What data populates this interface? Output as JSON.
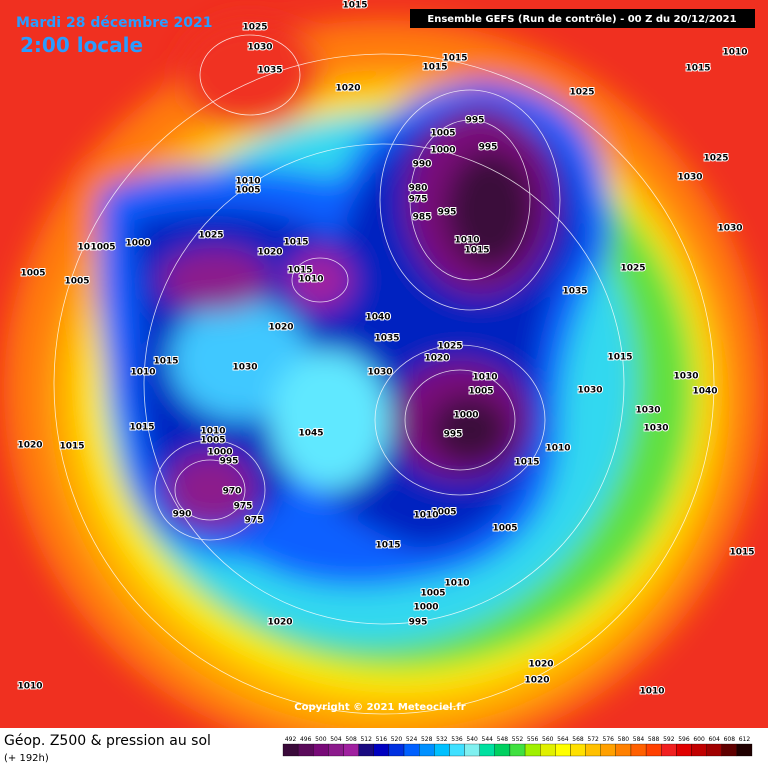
{
  "header": {
    "date": "Mardi 28 décembre 2021",
    "time": "2:00 locale",
    "model": "Ensemble GEFS  (Run de contrôle)  -  00 Z du 20/12/2021"
  },
  "copyright": "Copyright © 2021 Meteociel.fr",
  "footer": {
    "title": "Géop. Z500 & pression au sol",
    "subtitle": "(+ 192h)"
  },
  "legend": {
    "values": [
      492,
      496,
      500,
      504,
      508,
      512,
      516,
      520,
      524,
      528,
      532,
      536,
      540,
      544,
      548,
      552,
      556,
      560,
      564,
      568,
      572,
      576,
      580,
      584,
      588,
      592,
      596,
      600,
      604,
      608,
      612
    ],
    "colors": [
      "#3a0a3a",
      "#5a0a5a",
      "#780a78",
      "#8c1a8c",
      "#a020a0",
      "#1a0a80",
      "#0000c0",
      "#0030e0",
      "#0060ff",
      "#0090ff",
      "#00c0ff",
      "#40e0ff",
      "#80f0f0",
      "#00e0a0",
      "#00d060",
      "#40e040",
      "#a0f000",
      "#e0f000",
      "#ffff00",
      "#ffe000",
      "#ffc000",
      "#ffa000",
      "#ff8000",
      "#ff6000",
      "#ff4000",
      "#f02020",
      "#e00000",
      "#c00000",
      "#a00000",
      "#600000",
      "#200000"
    ]
  },
  "pressure_labels": [
    1015,
    1025,
    1030,
    1035,
    1020,
    1015,
    1015,
    1025,
    1010,
    1015,
    995,
    1005,
    995,
    1000,
    990,
    980,
    975,
    985,
    995,
    1010,
    1015,
    1025,
    1030,
    1010,
    1005,
    1000,
    1025,
    1020,
    1015,
    1015,
    1010,
    1030,
    1025,
    1035,
    1040,
    1020,
    1035,
    1025,
    1020,
    1030,
    1010,
    1005,
    1000,
    995,
    1015,
    1010,
    1030,
    1015,
    1030,
    1030,
    1040,
    1030,
    1030,
    1015,
    1010,
    1005,
    1000,
    995,
    1045,
    1010,
    1015,
    970,
    975,
    975,
    990,
    1005,
    1010,
    1005,
    1015,
    1010,
    1005,
    1000,
    995,
    1020,
    1015,
    1020,
    1020,
    1010,
    1010,
    1020,
    1015,
    1005,
    1005,
    1010,
    1005
  ]
}
